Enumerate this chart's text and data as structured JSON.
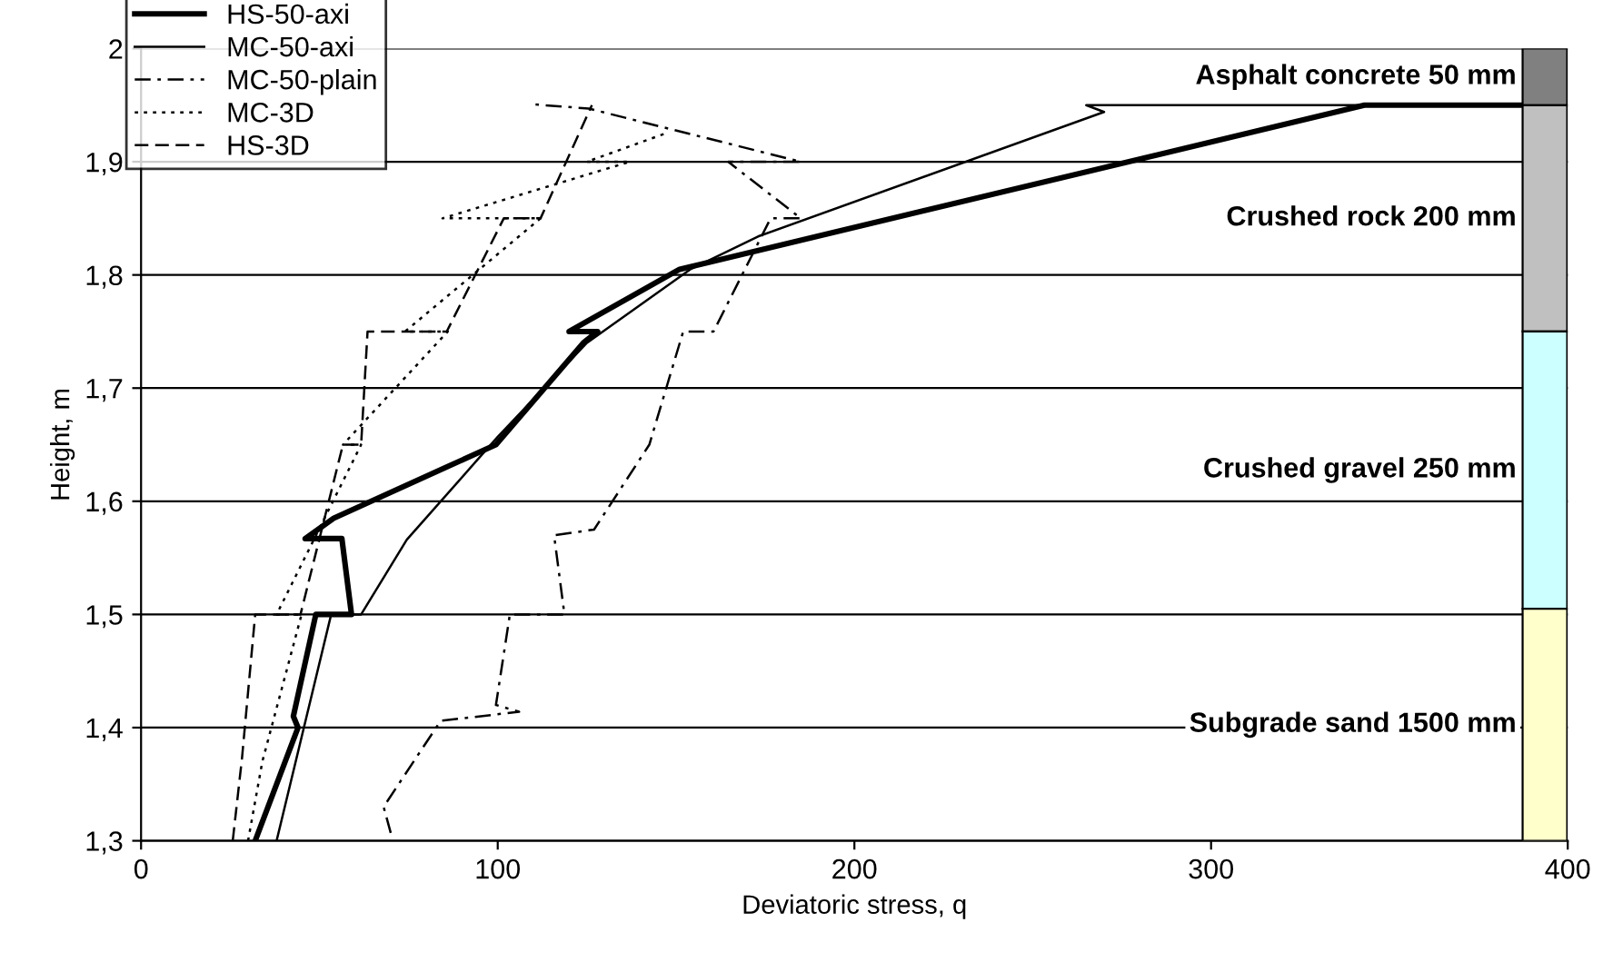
{
  "chart_data": {
    "type": "line",
    "xlabel": "Deviatoric stress, q",
    "ylabel": "Height, m",
    "xlim": [
      0,
      400
    ],
    "ylim": [
      1.3,
      2
    ],
    "xticks": [
      0,
      100,
      200,
      300,
      400
    ],
    "yticks": [
      {
        "value": 1.3,
        "label": "1,3"
      },
      {
        "value": 1.4,
        "label": "1,4"
      },
      {
        "value": 1.5,
        "label": "1,5"
      },
      {
        "value": 1.6,
        "label": "1,6"
      },
      {
        "value": 1.7,
        "label": "1,7"
      },
      {
        "value": 1.8,
        "label": "1,8"
      },
      {
        "value": 1.9,
        "label": "1,9"
      },
      2
    ],
    "grid": "y",
    "legend": "top left",
    "marker": "none",
    "series": [
      {
        "name": "HS-50-axi",
        "color": "#000000",
        "line_style": "solid",
        "x": [
          32,
          44,
          42.7,
          49,
          59,
          56.3,
          46,
          54,
          99.5,
          124,
          128,
          120,
          151,
          343,
          387
        ],
        "values": [
          1.3,
          1.4,
          1.41,
          1.5,
          1.5,
          1.567,
          1.567,
          1.585,
          1.65,
          1.74,
          1.75,
          1.75,
          1.805,
          1.95,
          1.95
        ]
      },
      {
        "name": "MC-50-axi",
        "color": "#000000",
        "line_style": "solid",
        "x": [
          38,
          53.3,
          61.7,
          74.5,
          100,
          125,
          154,
          173,
          270,
          265,
          387
        ],
        "values": [
          1.3,
          1.5,
          1.5,
          1.566,
          1.657,
          1.74,
          1.805,
          1.834,
          1.944,
          1.95,
          1.95
        ]
      },
      {
        "name": "MC-50-plain",
        "color": "#000000",
        "line_style": "dashdot",
        "x": [
          70,
          68,
          84,
          106,
          99.5,
          103.4,
          118.7,
          115.8,
          127,
          142.5,
          152,
          160.5,
          176.5,
          185,
          164.6,
          185,
          125.5,
          109
        ],
        "values": [
          1.307,
          1.33,
          1.406,
          1.414,
          1.42,
          1.5,
          1.5,
          1.57,
          1.575,
          1.65,
          1.75,
          1.75,
          1.85,
          1.85,
          1.9,
          1.9,
          1.947,
          1.951
        ]
      },
      {
        "name": "MC-3D",
        "color": "#000000",
        "line_style": "dotted",
        "x": [
          30,
          34,
          45,
          38,
          61.7,
          56.6,
          86,
          74,
          112,
          84.5,
          137,
          125,
          147
        ],
        "values": [
          1.3,
          1.37,
          1.5,
          1.5,
          1.65,
          1.65,
          1.75,
          1.75,
          1.85,
          1.85,
          1.9,
          1.9,
          1.925
        ]
      },
      {
        "name": "HS-3D",
        "color": "#000000",
        "line_style": "dashed",
        "x": [
          25.7,
          28.3,
          32,
          44.7,
          56.6,
          61.7,
          63.5,
          85.7,
          101.7,
          112,
          126.4
        ],
        "values": [
          1.3,
          1.373,
          1.5,
          1.5,
          1.65,
          1.65,
          1.75,
          1.75,
          1.85,
          1.85,
          1.95
        ]
      },
      {
        "type": "bar",
        "name": "Asphalt concrete 50 mm",
        "color": "#808080",
        "x": [
          393.6
        ],
        "base": [
          1.95
        ],
        "values": [
          0.05
        ]
      },
      {
        "type": "bar",
        "name": "Crushed rock 200 mm",
        "color": "#c0c0c0",
        "x": [
          393.6
        ],
        "base": [
          1.75
        ],
        "values": [
          0.2
        ]
      },
      {
        "type": "bar",
        "name": "Crushed gravel 250 mm",
        "color": "#ccffff",
        "x": [
          393.6
        ],
        "base": [
          1.505
        ],
        "values": [
          0.245
        ]
      },
      {
        "type": "bar",
        "name": "Subgrade sand 1500 mm",
        "color": "#ffffcc",
        "x": [
          393.6
        ],
        "base": [
          1.3
        ],
        "values": [
          0.205
        ]
      }
    ]
  }
}
